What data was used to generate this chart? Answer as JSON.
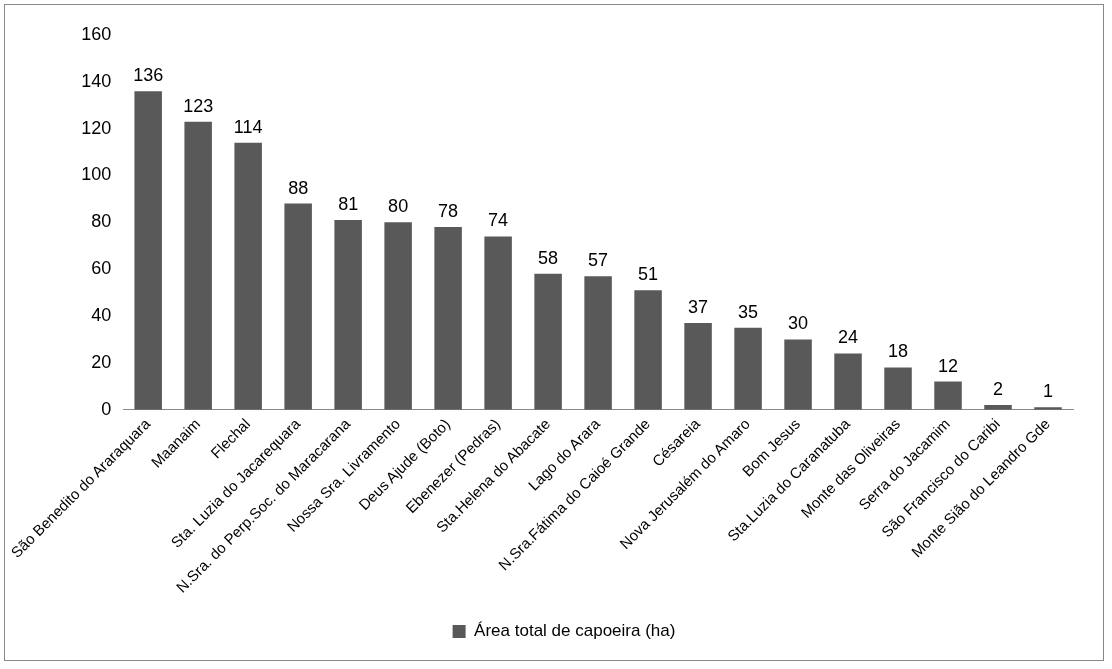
{
  "chart_data": {
    "type": "bar",
    "categories": [
      "São Benedito do Araraquara",
      "Maanaim",
      "Flechal",
      "Sta. Luzia do Jacarequara",
      "N.Sra. do Perp.Soc. do Maracarana",
      "Nossa Sra. Livramento",
      "Deus Ajude (Boto)",
      "Ebenezer (Pedras)",
      "Sta.Helena do Abacate",
      "Lago do Arara",
      "N.Sra.Fátima do Caioé Grande",
      "Césareia",
      "Nova Jerusalém do Amaro",
      "Bom Jesus",
      "Sta.Luzia do Caranatuba",
      "Monte das Oliveiras",
      "Serra do Jacamim",
      "São Francisco do Caribi",
      "Monte Sião do Leandro Gde"
    ],
    "series": [
      {
        "name": "Área total de capoeira (ha)",
        "color": "#595959",
        "values": [
          136,
          123,
          114,
          88,
          81,
          80,
          78,
          74,
          58,
          57,
          51,
          37,
          35,
          30,
          24,
          18,
          12,
          2,
          1
        ]
      }
    ],
    "ylim": [
      0,
      160
    ],
    "yticks": [
      0,
      20,
      40,
      60,
      80,
      100,
      120,
      140,
      160
    ],
    "grid": false,
    "legend": "bottom",
    "data_labels": true
  }
}
